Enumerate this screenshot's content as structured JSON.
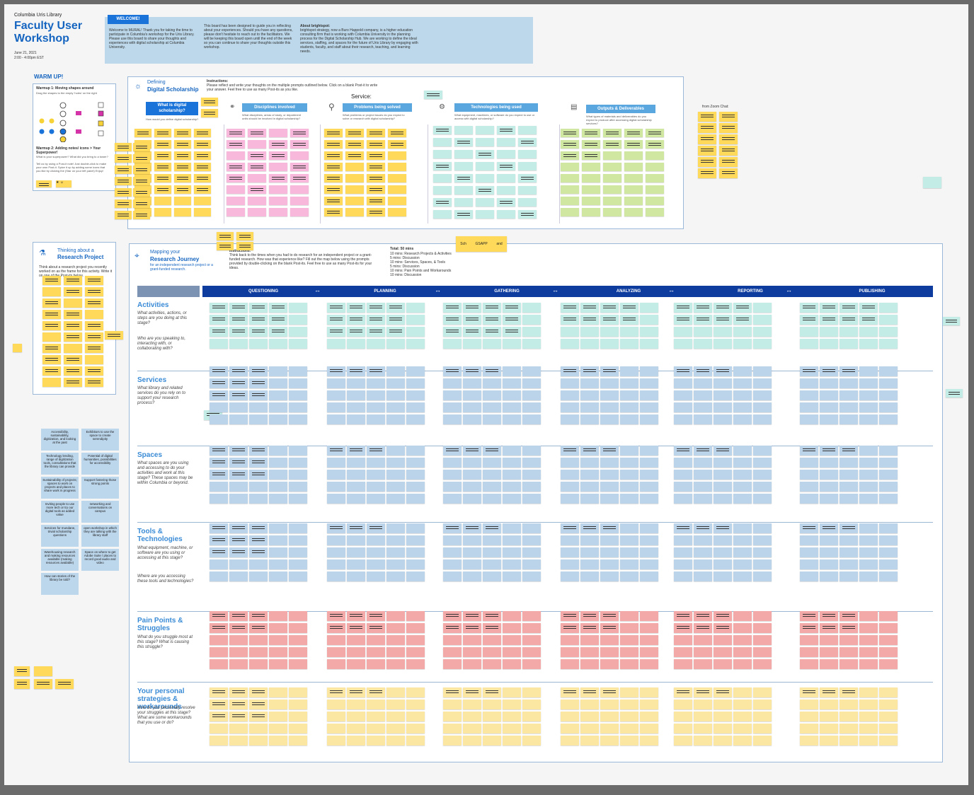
{
  "header": {
    "org": "Columbia Uris Library",
    "title_line1": "Faculty User",
    "title_line2": "Workshop",
    "date": "June 21, 2021",
    "time": "2:00 - 4:00pm EST"
  },
  "welcome": {
    "tag": "WELCOME!",
    "col1": "Welcome to MURAL! Thank you for taking the time to participate in Columbia's workshop for the Uris Library. Please use this board to share your thoughts and experiences with digital scholarship at Columbia University.",
    "col2": "This board has been designed to guide you in reflecting about your experiences. Should you have any questions, please don't hesitate to reach out to the facilitators. We will be keeping this board open until the end of the week so you can continue to share your thoughts outside this workshop.",
    "col3_title": "About brightspot:",
    "col3": "brightspot strategy, now a Buro Happold company, is a higher education consulting firm that is working with Columbia University in the planning process for the Digital Scholarship Hub. We are working to define the ideal services, staffing, and spaces for the future of Uris Library by engaging with students, faculty, and staff about their research, teaching, and learning needs."
  },
  "warmup": {
    "title": "WARM UP!",
    "w1": "Warmup 1: Moving shapes around",
    "w1_sub": "Drag the shapes to the empty 'holes' on the right",
    "w2": "Warmup 2: Adding notes/ icons > Your Superpower!",
    "w2_sub": "What is your superpower? What did you bring to a tower?",
    "w2_body": "Tell us by using a Post-it note! Just double-click to make your own Post-it. Spice it up by adding some icons that you like by clicking the (Star on your left panel) Enjoy!"
  },
  "defining": {
    "title1": "Defining",
    "title2": "Digital Scholarship",
    "instructions_title": "Instructions:",
    "instructions": "Please reflect and write your thoughts on the multiple prompts outlined below. Click on a blank Post-it to write your answer. Feel free to use as many Post-its as you like.",
    "service_label": "Service:",
    "categories": [
      {
        "label": "What is digital scholarship?",
        "sub": "How would you define digital scholarship?"
      },
      {
        "label": "Disciplines involved",
        "sub": "What disciplines, areas of study, or department units should be involved in digital scholarship?"
      },
      {
        "label": "Problems being solved",
        "sub": "What problems or project issues do you expect to solve or research with digital scholarship?"
      },
      {
        "label": "Technologies being used",
        "sub": "What equipment, machines, or software do you expect to use or access with digital scholarship?"
      },
      {
        "label": "Outputs & Deliverables",
        "sub": "What types of materials and deliverables do you expect to produce after accessing digital scholarship services?"
      }
    ]
  },
  "zoom_chat": "from Zoom Chat:",
  "thinking": {
    "title1": "Thinking about a",
    "title2": "Research Project",
    "body": "Think about a research project you recently worked on as the frame for this activity. Write it on one of the Post-its below."
  },
  "journey": {
    "title1": "Mapping your",
    "title2": "Research Journey",
    "sub": "for an independent research project or a grant-funded research.",
    "instructions_title": "Instructions:",
    "instructions": "Think back to the times when you had to do research for an independent project or a grant-funded research. How was that experience like? Fill out the map below using the prompts provided by double-clicking on the blank Post-its. Feel free to use as many Post-its for your ideas.",
    "total": "Total: 50 mins",
    "schedule": [
      "10 mins: Research Projects & Activities",
      "5 mins: Discussion",
      "10 mins: Services, Spaces, & Tools",
      "5 mins: Discussion",
      "10 mins: Pain Points and Workarounds",
      "10 mins: Discussion"
    ],
    "stages": [
      "QUESTIONING",
      "PLANNING",
      "GATHERING",
      "ANALYZING",
      "REPORTING",
      "PUBLISHING"
    ],
    "arrow": "↔",
    "sticky_small": [
      "Sch",
      "GSAPP",
      "and"
    ]
  },
  "rows": [
    {
      "label": "Activities",
      "q": "What activities, actions, or steps are you doing at this stage?",
      "q2": "Who are you speaking to, interacting with, or collaborating with?"
    },
    {
      "label": "Services",
      "q": "What library and related services do you rely on to support your research process?",
      "q2": ""
    },
    {
      "label": "Spaces",
      "q": "What spaces are you using and accessing to do your activities and work at this stage? These spaces may be within Columbia or beyond.",
      "q2": ""
    },
    {
      "label": "Tools & Technologies",
      "q": "What equipment, machine, or software are you using or accessing at this stage?",
      "q2": "Where are you accessing these tools and technologies?"
    },
    {
      "label": "Pain Points & Struggles",
      "q": "What do you struggle most at this stage? What is causing this struggle?",
      "q2": ""
    },
    {
      "label": "Your personal strategies & workarounds",
      "q": "How do you personally resolve your struggles at this stage? What are some workarounds that you use or do?",
      "q2": ""
    }
  ],
  "ideas": [
    "Accessibility, sustainability, digitization, and looking at the past",
    "Exhibitors to use the space to create serendipity",
    "Technology lending, range of digitization tools, consultations that the library can provide",
    "Potential of digital humanities, possibilities for accessibility",
    "Sustainability of projects; spaces to work on projects and places to share work in progress",
    "Support fostering those strong points",
    "Inviting people to use more tech or try our digital tools as added value",
    "networking and conversations on campus",
    "Services for mundane, trivial scholarship questions",
    "open workshop in which they are talking with the library staff",
    "Warehousing research and making resources available (making resources available)",
    "Space on where to get Adobe Suite / places to record good audio and video",
    "How can stories of the library be told?"
  ],
  "colors": {
    "accent": "#1565c0",
    "stage_bar": "#0d3c9e",
    "yellow": "#ffd95a",
    "pink": "#f7b8dc",
    "teal": "#c4ece6",
    "green": "#cfe7a0",
    "blue": "#c3dbef",
    "red": "#f4a9a9",
    "pale_yellow": "#fbe7a2"
  }
}
